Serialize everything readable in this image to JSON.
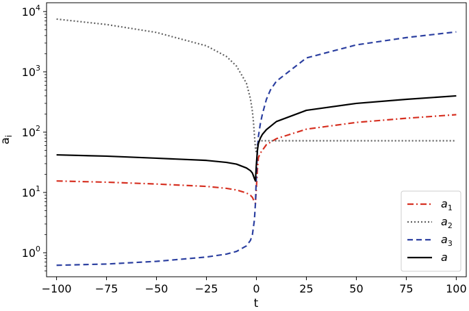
{
  "chart_data": {
    "type": "line",
    "title": "",
    "xlabel": "t",
    "ylabel": "a",
    "ylabel_sub": "i",
    "yscale": "log",
    "xlim": [
      -105,
      105
    ],
    "ylim": [
      0.4,
      14000
    ],
    "xticks": [
      -100,
      -75,
      -50,
      -25,
      0,
      25,
      50,
      75,
      100
    ],
    "xtick_labels": [
      "−100",
      "−75",
      "−50",
      "−25",
      "0",
      "25",
      "50",
      "75",
      "100"
    ],
    "yticks": [
      1,
      10,
      100,
      1000,
      10000
    ],
    "ytick_labels": [
      {
        "base": "10",
        "exp": "0"
      },
      {
        "base": "10",
        "exp": "1"
      },
      {
        "base": "10",
        "exp": "2"
      },
      {
        "base": "10",
        "exp": "3"
      },
      {
        "base": "10",
        "exp": "4"
      }
    ],
    "grid": false,
    "legend_position": "lower-right",
    "series": [
      {
        "name": "a",
        "sub": "1",
        "color": "#d62f20",
        "dash": "dashdot",
        "x": [
          -100,
          -75,
          -50,
          -25,
          -15,
          -10,
          -5,
          -3,
          -2,
          -1,
          -0.5,
          0,
          0.5,
          1,
          2,
          5,
          10,
          25,
          50,
          75,
          100
        ],
        "y": [
          15.5,
          14.8,
          13.8,
          12.6,
          11.7,
          11.0,
          9.8,
          9.0,
          8.3,
          7.0,
          6.6,
          12,
          24,
          38,
          45,
          62,
          78,
          112,
          145,
          170,
          195
        ]
      },
      {
        "name": "a",
        "sub": "2",
        "color": "#606060",
        "dash": "dotted",
        "x": [
          -100,
          -75,
          -50,
          -25,
          -15,
          -10,
          -5,
          -3,
          -2,
          -1.5,
          -1,
          -0.5,
          0,
          0.5,
          1,
          2,
          5,
          25,
          50,
          100
        ],
        "y": [
          7500,
          6100,
          4500,
          2700,
          1800,
          1250,
          650,
          360,
          220,
          150,
          90,
          55,
          45,
          62,
          70,
          72,
          72,
          72,
          72,
          72
        ]
      },
      {
        "name": "a",
        "sub": "3",
        "color": "#2b3fa0",
        "dash": "dashed",
        "x": [
          -100,
          -75,
          -50,
          -25,
          -15,
          -10,
          -5,
          -3,
          -2,
          -1,
          -0.5,
          0,
          0.5,
          1,
          2,
          3,
          5,
          7,
          10,
          25,
          50,
          75,
          100
        ],
        "y": [
          0.62,
          0.65,
          0.72,
          0.85,
          0.95,
          1.05,
          1.3,
          1.6,
          2.0,
          3.5,
          6.5,
          20,
          50,
          85,
          140,
          200,
          350,
          500,
          700,
          1700,
          2800,
          3700,
          4600
        ]
      },
      {
        "name": "a",
        "sub": "",
        "color": "#000000",
        "dash": "solid",
        "x": [
          -100,
          -75,
          -50,
          -25,
          -15,
          -10,
          -5,
          -3,
          -2,
          -1,
          -0.5,
          0,
          0.5,
          1,
          2,
          3,
          5,
          10,
          25,
          50,
          75,
          100
        ],
        "y": [
          42,
          40,
          37,
          34,
          31.5,
          29.5,
          25.5,
          23,
          21,
          17,
          15.5,
          30,
          50,
          65,
          80,
          92,
          110,
          150,
          230,
          300,
          350,
          400
        ]
      }
    ]
  }
}
